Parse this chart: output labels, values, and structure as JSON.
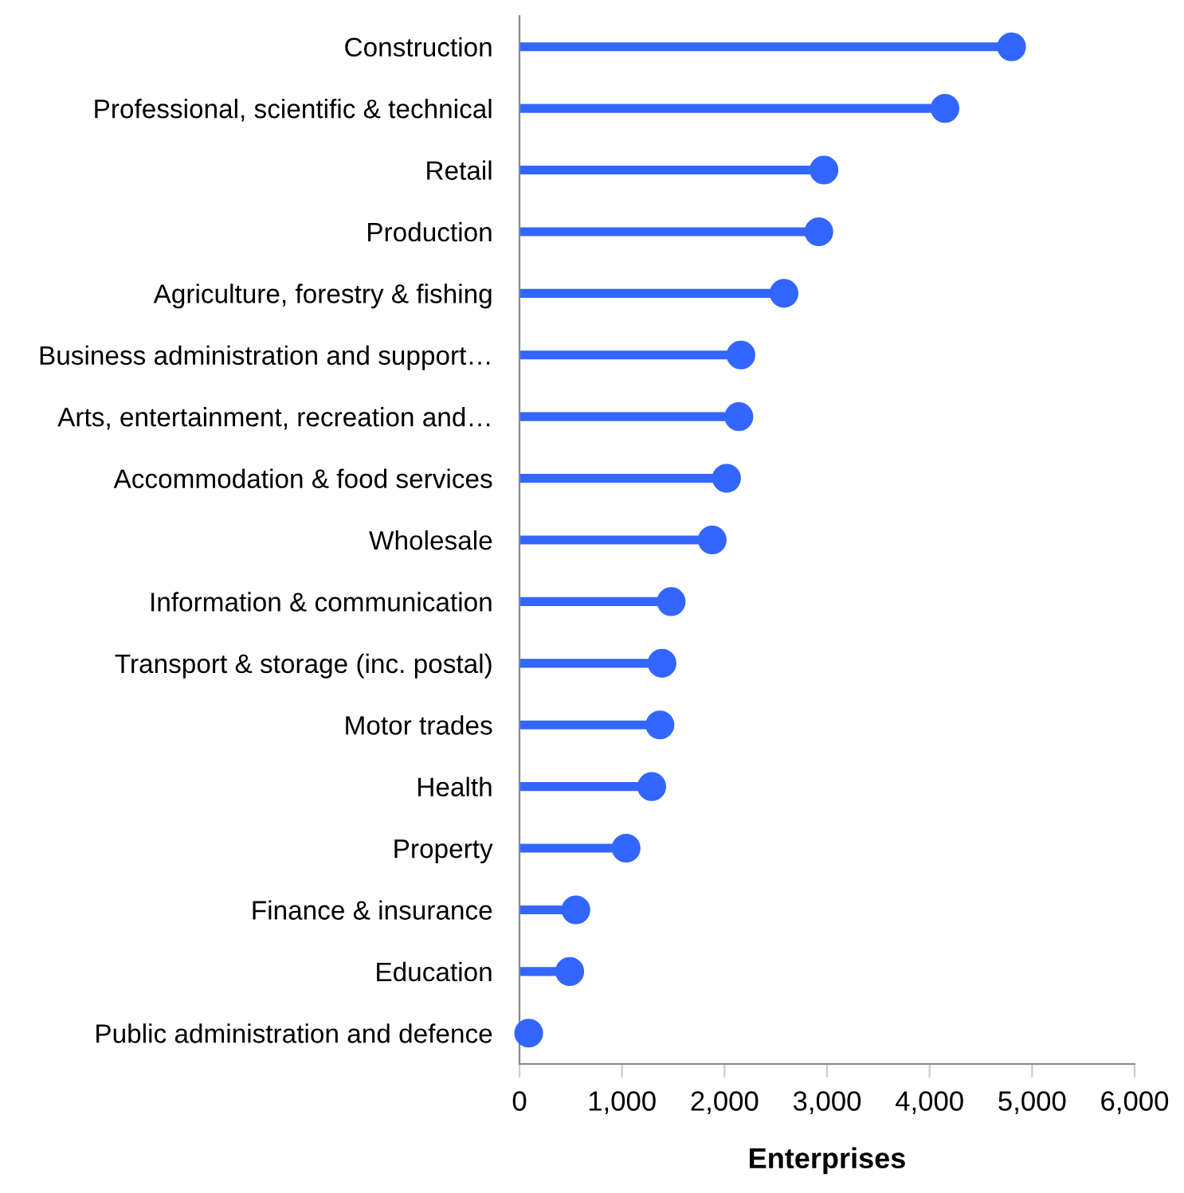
{
  "chart_data": {
    "type": "lollipop",
    "orientation": "horizontal",
    "xlabel": "Enterprises",
    "categories": [
      "Construction",
      "Professional, scientific & technical",
      "Retail",
      "Production",
      "Agriculture, forestry & fishing",
      "Business administration and support…",
      "Arts, entertainment, recreation and…",
      "Accommodation & food services",
      "Wholesale",
      "Information & communication",
      "Transport & storage (inc. postal)",
      "Motor trades",
      "Health",
      "Property",
      "Finance & insurance",
      "Education",
      "Public administration and defence"
    ],
    "values": [
      4800,
      4150,
      2970,
      2920,
      2580,
      2160,
      2140,
      2020,
      1880,
      1480,
      1390,
      1370,
      1290,
      1040,
      550,
      490,
      90
    ],
    "color": "#3366ff",
    "marker": "circle",
    "xlim": [
      0,
      6000
    ],
    "xticks": [
      {
        "value": 0,
        "label": "0"
      },
      {
        "value": 1000,
        "label": "1,000"
      },
      {
        "value": 2000,
        "label": "2,000"
      },
      {
        "value": 3000,
        "label": "3,000"
      },
      {
        "value": 4000,
        "label": "4,000"
      },
      {
        "value": 5000,
        "label": "5,000"
      },
      {
        "value": 6000,
        "label": "6,000"
      }
    ],
    "grid": false
  }
}
